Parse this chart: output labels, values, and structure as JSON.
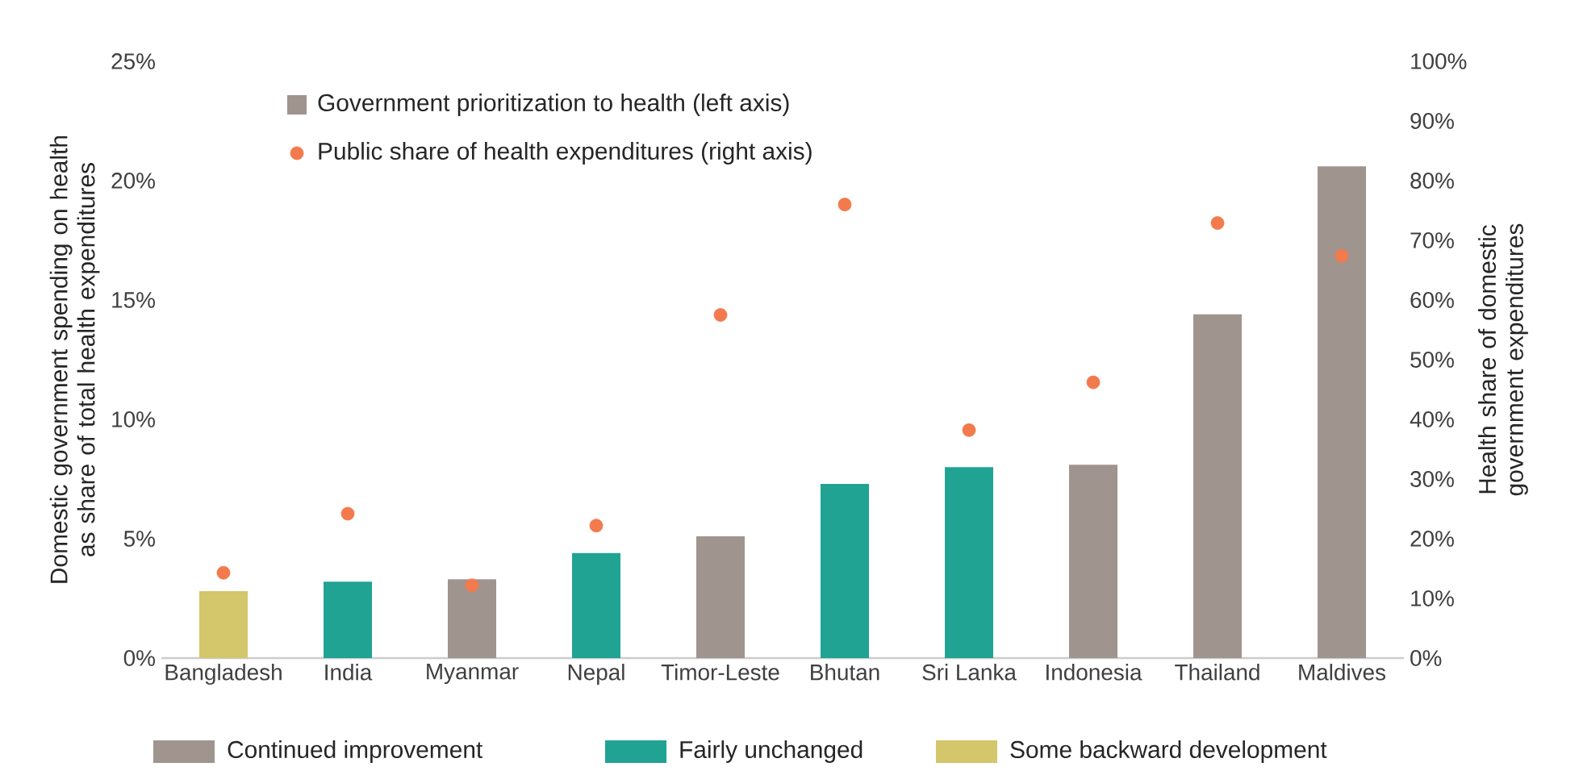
{
  "chart_data": {
    "type": "bar",
    "ylabel": "Domestic government  spending on health as share of total health expenditures",
    "y2label": "Health share of domestic government expenditures",
    "categories": [
      "Bangladesh",
      "India",
      "Myanmar",
      "Nepal",
      "Timor-Leste",
      "Bhutan",
      "Sri Lanka",
      "Indonesia",
      "Thailand",
      "Maldives"
    ],
    "series": [
      {
        "name": "Continued improvement",
        "color": "#a0948e",
        "values": [
          null,
          null,
          3.3,
          null,
          5.1,
          null,
          null,
          8.1,
          14.4,
          20.6
        ]
      },
      {
        "name": "Fairly unchanged",
        "color": "#21a394",
        "values": [
          null,
          3.2,
          null,
          4.4,
          null,
          7.3,
          8.0,
          null,
          null,
          null
        ]
      },
      {
        "name": "Some backward development",
        "color": "#d3c66b",
        "values": [
          2.8,
          null,
          null,
          null,
          null,
          null,
          null,
          null,
          null,
          null
        ]
      },
      {
        "name": "Public share of health expenditures (right axis)",
        "type": "scatter",
        "axis": "y2",
        "color": "#f27a4c",
        "marker": "circle",
        "values": [
          14.3,
          24.2,
          12.2,
          22.2,
          57.5,
          76.0,
          38.2,
          46.2,
          72.9,
          67.4
        ]
      }
    ],
    "annotations": [
      "Government prioritization to health (left axis)"
    ],
    "ylim": [
      0,
      25
    ],
    "yticks": [
      {
        "value": 0,
        "label": "0%"
      },
      {
        "value": 5,
        "label": "5%"
      },
      {
        "value": 10,
        "label": "10%"
      },
      {
        "value": 15,
        "label": "15%"
      },
      {
        "value": 20,
        "label": "20%"
      },
      {
        "value": 25,
        "label": "25%"
      }
    ],
    "y2lim": [
      0,
      100
    ],
    "y2ticks": [
      {
        "value": 0,
        "label": "0%"
      },
      {
        "value": 10,
        "label": "10%"
      },
      {
        "value": 20,
        "label": "20%"
      },
      {
        "value": 30,
        "label": "30%"
      },
      {
        "value": 40,
        "label": "40%"
      },
      {
        "value": 50,
        "label": "50%"
      },
      {
        "value": 60,
        "label": "60%"
      },
      {
        "value": 70,
        "label": "70%"
      },
      {
        "value": 80,
        "label": "80%"
      },
      {
        "value": 90,
        "label": "90%"
      },
      {
        "value": 100,
        "label": "100%"
      }
    ],
    "legend": "bottom",
    "grid": false
  }
}
